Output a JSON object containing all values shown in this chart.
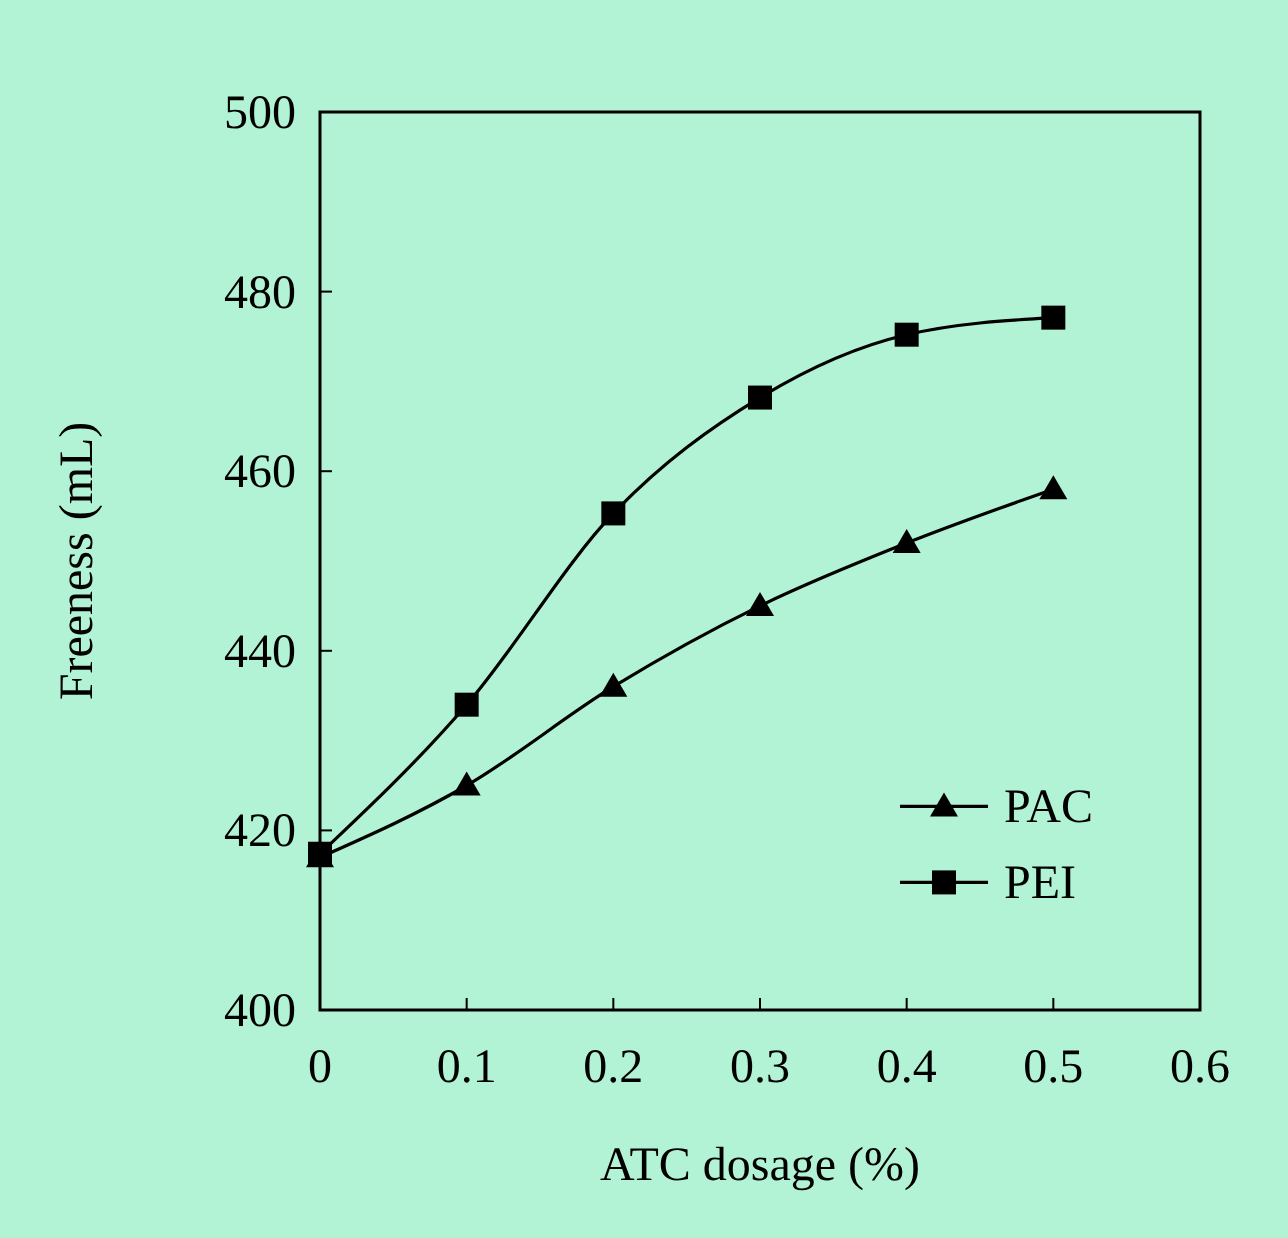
{
  "chart_data": {
    "type": "line",
    "xlabel": "ATC dosage (%)",
    "ylabel": "Freeness (mL)",
    "x": [
      0,
      0.1,
      0.2,
      0.3,
      0.4,
      0.5
    ],
    "xlim": [
      0,
      0.6
    ],
    "xticks": [
      0,
      0.1,
      0.2,
      0.3,
      0.4,
      0.5,
      0.6
    ],
    "ylim": [
      400,
      500
    ],
    "yticks": [
      400,
      420,
      440,
      460,
      480,
      500
    ],
    "series": [
      {
        "name": "PAC",
        "color": "#000000",
        "marker": "triangle",
        "values": [
          417,
          425,
          436,
          445,
          452,
          458
        ]
      },
      {
        "name": "PEI",
        "color": "#000000",
        "marker": "square",
        "values": [
          417.4,
          434,
          455.3,
          468.2,
          475.2,
          477.1
        ]
      }
    ],
    "legend": "right",
    "grid": false,
    "line_style": "solid"
  }
}
